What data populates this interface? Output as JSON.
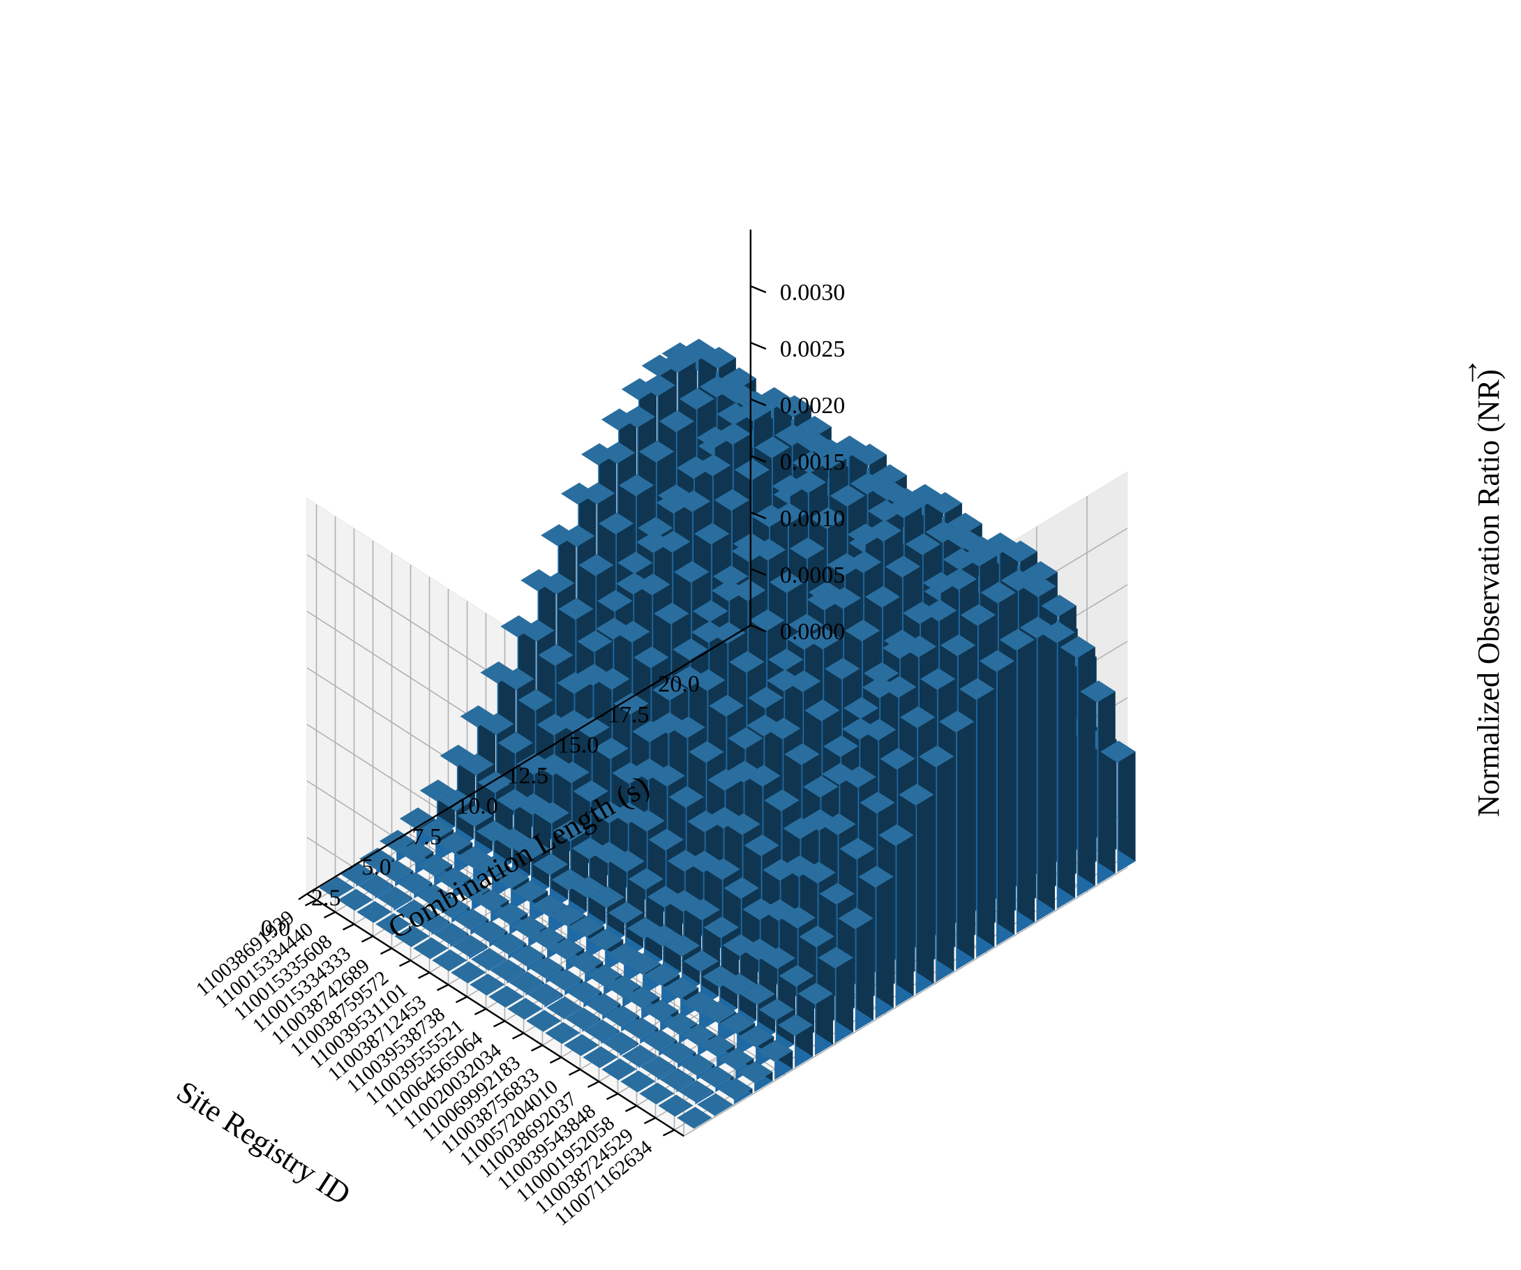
{
  "chart_data": {
    "type": "bar3d",
    "xlabel": "Combination Length (s)",
    "ylabel": "Site Registry ID",
    "zlabel": "Normalized Observation Ratio (NR)",
    "zlabel_accent": "→",
    "xlim": [
      0,
      22
    ],
    "zlim": [
      0,
      0.0035
    ],
    "x_ticks": [
      "0.0",
      "2.5",
      "5.0",
      "7.5",
      "10.0",
      "12.5",
      "15.0",
      "17.5",
      "20.0"
    ],
    "z_ticks": [
      "0.0000",
      "0.0005",
      "0.0010",
      "0.0015",
      "0.0020",
      "0.0025",
      "0.0030"
    ],
    "sites": [
      "110038691939",
      "110015334440",
      "110015335608",
      "110015334333",
      "110038742689",
      "110038759572",
      "110039531101",
      "110038712453",
      "110039538738",
      "110039555521",
      "110064565064",
      "110020032034",
      "110069992183",
      "110038756833",
      "110057204010",
      "110038692037",
      "110039543848",
      "110001952058",
      "110038724529",
      "110071162634"
    ],
    "x": [
      1,
      2,
      3,
      4,
      5,
      6,
      7,
      8,
      9,
      10,
      11,
      12,
      13,
      14,
      15,
      16,
      17,
      18,
      19,
      20,
      21,
      22
    ],
    "series": [
      {
        "values": [
          0.0,
          2e-05,
          4e-05,
          9e-05,
          0.00018,
          0.00032,
          0.00052,
          0.00076,
          0.00104,
          0.00134,
          0.00164,
          0.00193,
          0.00219,
          0.00243,
          0.00263,
          0.00279,
          0.00289,
          0.00289,
          0.00272,
          0.00244,
          0.00186,
          0.00097
        ]
      },
      {
        "values": [
          0.0,
          2e-05,
          4e-05,
          0.0001,
          0.00019,
          0.00034,
          0.00055,
          0.0008,
          0.00109,
          0.00141,
          0.00172,
          0.00203,
          0.0023,
          0.00255,
          0.00276,
          0.00293,
          0.00303,
          0.00303,
          0.00285,
          0.00256,
          0.00195,
          0.00097
        ]
      },
      {
        "values": [
          0.0,
          2e-05,
          4e-05,
          9e-05,
          0.00018,
          0.00031,
          0.0005,
          0.00074,
          0.00101,
          0.0013,
          0.0016,
          0.00188,
          0.00214,
          0.00237,
          0.00256,
          0.00272,
          0.00281,
          0.00281,
          0.00265,
          0.00237,
          0.00181,
          0.00097
        ]
      },
      {
        "values": [
          0.0,
          1e-05,
          4e-05,
          8e-05,
          0.00016,
          0.00028,
          0.00045,
          0.00066,
          0.0009,
          0.00116,
          0.00142,
          0.00167,
          0.0019,
          0.0021,
          0.00228,
          0.00242,
          0.0025,
          0.0025,
          0.00235,
          0.00211,
          0.00161,
          0.00097
        ]
      },
      {
        "values": [
          0.0,
          2e-05,
          4e-05,
          9e-05,
          0.00018,
          0.00032,
          0.00052,
          0.00076,
          0.00104,
          0.00134,
          0.00164,
          0.00193,
          0.00219,
          0.00243,
          0.00263,
          0.00279,
          0.00289,
          0.00289,
          0.00272,
          0.00244,
          0.00186,
          0.00097
        ]
      },
      {
        "values": [
          0.0,
          2e-05,
          4e-05,
          0.0001,
          0.00019,
          0.00034,
          0.00055,
          0.0008,
          0.00109,
          0.00141,
          0.00172,
          0.00203,
          0.0023,
          0.00255,
          0.00276,
          0.00293,
          0.00303,
          0.00303,
          0.00285,
          0.00256,
          0.00195,
          0.00097
        ]
      },
      {
        "values": [
          0.0,
          2e-05,
          4e-05,
          9e-05,
          0.00018,
          0.00031,
          0.0005,
          0.00074,
          0.00101,
          0.0013,
          0.0016,
          0.00188,
          0.00214,
          0.00237,
          0.00256,
          0.00272,
          0.00281,
          0.00281,
          0.00265,
          0.00237,
          0.00181,
          0.00097
        ]
      },
      {
        "values": [
          0.0,
          1e-05,
          4e-05,
          8e-05,
          0.00016,
          0.00028,
          0.00045,
          0.00066,
          0.0009,
          0.00116,
          0.00142,
          0.00167,
          0.0019,
          0.0021,
          0.00228,
          0.00242,
          0.0025,
          0.0025,
          0.00235,
          0.00211,
          0.00161,
          0.00097
        ]
      },
      {
        "values": [
          0.0,
          2e-05,
          4e-05,
          9e-05,
          0.00018,
          0.00032,
          0.00052,
          0.00076,
          0.00104,
          0.00134,
          0.00164,
          0.00193,
          0.00219,
          0.00243,
          0.00263,
          0.00279,
          0.00289,
          0.00289,
          0.00272,
          0.00244,
          0.00186,
          0.00097
        ]
      },
      {
        "values": [
          0.0,
          2e-05,
          4e-05,
          0.0001,
          0.00019,
          0.00034,
          0.00055,
          0.0008,
          0.00109,
          0.00141,
          0.00172,
          0.00203,
          0.0023,
          0.00255,
          0.00276,
          0.00293,
          0.00303,
          0.00303,
          0.00285,
          0.00256,
          0.00195,
          0.00097
        ]
      },
      {
        "values": [
          0.0,
          2e-05,
          4e-05,
          9e-05,
          0.00018,
          0.00031,
          0.0005,
          0.00074,
          0.00101,
          0.0013,
          0.0016,
          0.00188,
          0.00214,
          0.00237,
          0.00256,
          0.00272,
          0.00281,
          0.00281,
          0.00265,
          0.00237,
          0.00181,
          0.00097
        ]
      },
      {
        "values": [
          0.0,
          1e-05,
          4e-05,
          8e-05,
          0.00016,
          0.00028,
          0.00045,
          0.00066,
          0.0009,
          0.00116,
          0.00142,
          0.00167,
          0.0019,
          0.0021,
          0.00228,
          0.00242,
          0.0025,
          0.0025,
          0.00235,
          0.00211,
          0.00161,
          0.00097
        ]
      },
      {
        "values": [
          0.0,
          2e-05,
          4e-05,
          9e-05,
          0.00018,
          0.00032,
          0.00052,
          0.00076,
          0.00104,
          0.00134,
          0.00164,
          0.00193,
          0.00219,
          0.00243,
          0.00263,
          0.00279,
          0.00289,
          0.00289,
          0.00272,
          0.00244,
          0.00186,
          0.00097
        ]
      },
      {
        "values": [
          0.0,
          2e-05,
          4e-05,
          0.0001,
          0.00019,
          0.00034,
          0.00055,
          0.0008,
          0.00109,
          0.00141,
          0.00172,
          0.00203,
          0.0023,
          0.00255,
          0.00276,
          0.00293,
          0.00303,
          0.00303,
          0.00285,
          0.00256,
          0.00195,
          0.00097
        ]
      },
      {
        "values": [
          0.0,
          2e-05,
          4e-05,
          9e-05,
          0.00018,
          0.00031,
          0.0005,
          0.00074,
          0.00101,
          0.0013,
          0.0016,
          0.00188,
          0.00214,
          0.00237,
          0.00256,
          0.00272,
          0.00281,
          0.00281,
          0.00265,
          0.00237,
          0.00181,
          0.00097
        ]
      },
      {
        "values": [
          0.0,
          1e-05,
          4e-05,
          8e-05,
          0.00016,
          0.00028,
          0.00045,
          0.00066,
          0.0009,
          0.00116,
          0.00142,
          0.00167,
          0.0019,
          0.0021,
          0.00228,
          0.00242,
          0.0025,
          0.0025,
          0.00235,
          0.00211,
          0.00161,
          0.00097
        ]
      },
      {
        "values": [
          0.0,
          2e-05,
          4e-05,
          9e-05,
          0.00018,
          0.00032,
          0.00052,
          0.00076,
          0.00104,
          0.00134,
          0.00164,
          0.00193,
          0.00219,
          0.00243,
          0.00263,
          0.00279,
          0.00289,
          0.00289,
          0.00272,
          0.00244,
          0.00186,
          0.00097
        ]
      },
      {
        "values": [
          0.0,
          2e-05,
          4e-05,
          0.0001,
          0.00019,
          0.00034,
          0.00055,
          0.0008,
          0.00109,
          0.00141,
          0.00172,
          0.00203,
          0.0023,
          0.00255,
          0.00276,
          0.00293,
          0.00303,
          0.00303,
          0.00285,
          0.00256,
          0.00195,
          0.00097
        ]
      },
      {
        "values": [
          0.0,
          2e-05,
          4e-05,
          9e-05,
          0.00018,
          0.00031,
          0.0005,
          0.00074,
          0.00101,
          0.0013,
          0.0016,
          0.00188,
          0.00214,
          0.00237,
          0.00256,
          0.00272,
          0.00281,
          0.00281,
          0.00265,
          0.00237,
          0.00181,
          0.00097
        ]
      },
      {
        "values": [
          0.0,
          1e-05,
          4e-05,
          8e-05,
          0.00016,
          0.00028,
          0.00045,
          0.00066,
          0.0009,
          0.00116,
          0.00142,
          0.00167,
          0.0019,
          0.0021,
          0.00228,
          0.00242,
          0.0025,
          0.0025,
          0.00235,
          0.00211,
          0.00161,
          0.00097
        ]
      }
    ],
    "colors": {
      "top": "#2a6e9f",
      "side_light": "#1f6aa5",
      "side_dark": "#0f3550"
    },
    "grid": true
  }
}
